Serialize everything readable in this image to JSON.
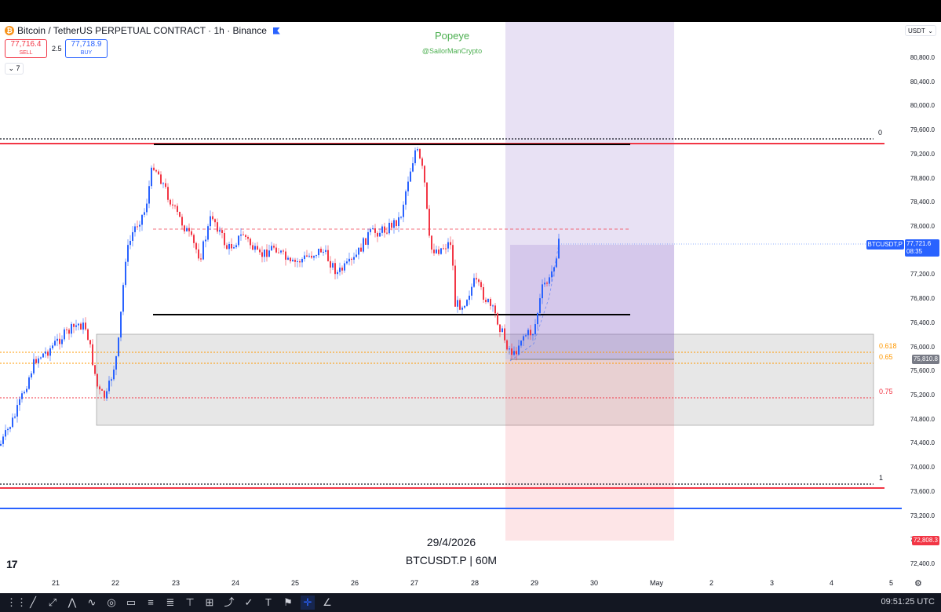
{
  "header": {
    "symbol_title": "Bitcoin / TetherUS PERPETUAL CONTRACT · 1h · Binance",
    "sell_price": "77,716.4",
    "sell_label": "SELL",
    "spread": "2.5",
    "buy_price": "77,718.9",
    "buy_label": "BUY",
    "indicator_count": "7"
  },
  "watermark": {
    "name": "Popeye",
    "handle": "@SailorManCrypto",
    "date": "29/4/2026",
    "symbol": "BTCUSDT.P | 60M"
  },
  "price_scale": {
    "currency": "USDT",
    "labels": [
      "80,800.0",
      "80,400.0",
      "80,000.0",
      "79,600.0",
      "79,200.0",
      "78,800.0",
      "78,400.0",
      "78,000.0",
      "77,600.0",
      "77,200.0",
      "76,800.0",
      "76,400.0",
      "76,000.0",
      "75,600.0",
      "75,200.0",
      "74,800.0",
      "74,400.0",
      "74,000.0",
      "73,600.0",
      "73,200.0",
      "72,800.0",
      "72,400.0"
    ],
    "values": [
      80800,
      80400,
      80000,
      79600,
      79200,
      78800,
      78400,
      78000,
      77600,
      77200,
      76800,
      76400,
      76000,
      75600,
      75200,
      74800,
      74400,
      74000,
      73600,
      73200,
      72800,
      72400
    ],
    "current_symbol_tag": "BTCUSDT.P",
    "current_price": "77,721.6",
    "countdown": "08:35",
    "tag_75810": "75,810.8",
    "tag_72808": "72,808.3"
  },
  "fib_labels": {
    "level_0": "0",
    "level_0618": "0.618",
    "level_065": "0.65",
    "level_075": "0.75",
    "level_1": "1"
  },
  "time_axis": {
    "labels": [
      "21",
      "22",
      "23",
      "24",
      "25",
      "26",
      "27",
      "28",
      "29",
      "30",
      "May",
      "2",
      "3",
      "4",
      "5"
    ]
  },
  "toolbar": {
    "clock": "09:51:25 UTC",
    "tools": [
      "cursor-icon",
      "trendline-icon",
      "ray-icon",
      "pitchfork-icon",
      "brush-icon",
      "circle-icon",
      "rectangle-icon",
      "fib-retracement-icon",
      "fib-extension-icon",
      "gann-icon",
      "position-icon",
      "projection-icon",
      "pattern-icon",
      "text-icon",
      "annotation-icon",
      "crosshair-icon",
      "measure-icon"
    ]
  },
  "colors": {
    "sell": "#f23645",
    "buy": "#2962ff",
    "candle_up": "#2962ff",
    "candle_down": "#f23645",
    "watermark": "#4caf50"
  }
}
